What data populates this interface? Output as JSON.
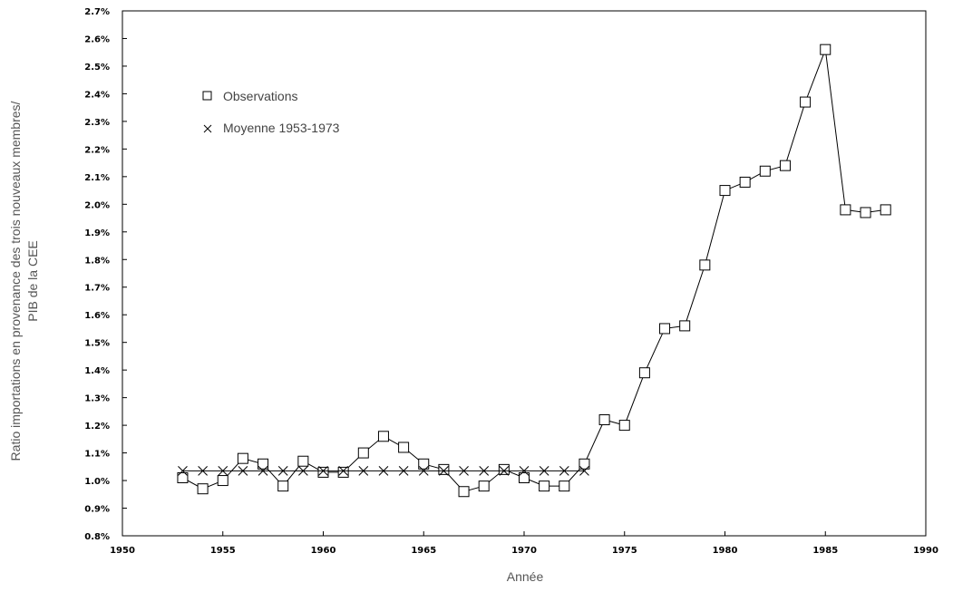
{
  "chart_data": {
    "type": "line",
    "title": "",
    "xlabel": "Année",
    "ylabel_lines": [
      "Ratio importations en provenance des trois nouveaux membres/",
      "PIB de la CEE"
    ],
    "xlim": [
      1950,
      1990
    ],
    "ylim": [
      0.8,
      2.7
    ],
    "x_ticks": [
      "1950",
      "1955",
      "1960",
      "1965",
      "1970",
      "1975",
      "1980",
      "1985",
      "1990"
    ],
    "y_ticks": [
      "0.8%",
      "0.9%",
      "1.0%",
      "1.1%",
      "1.2%",
      "1.3%",
      "1.4%",
      "1.5%",
      "1.6%",
      "1.7%",
      "1.8%",
      "1.9%",
      "2.0%",
      "2.1%",
      "2.2%",
      "2.3%",
      "2.4%",
      "2.5%",
      "2.6%",
      "2.7%"
    ],
    "legend_position": "top-left",
    "grid": false,
    "series": [
      {
        "name": "Observations",
        "marker": "square",
        "x": [
          1953,
          1954,
          1955,
          1956,
          1957,
          1958,
          1959,
          1960,
          1961,
          1962,
          1963,
          1964,
          1965,
          1966,
          1967,
          1968,
          1969,
          1970,
          1971,
          1972,
          1973,
          1974,
          1975,
          1976,
          1977,
          1978,
          1979,
          1980,
          1981,
          1982,
          1983,
          1984,
          1985,
          1986,
          1987,
          1988
        ],
        "y": [
          1.01,
          0.97,
          1.0,
          1.08,
          1.06,
          0.98,
          1.07,
          1.03,
          1.03,
          1.1,
          1.16,
          1.12,
          1.06,
          1.04,
          0.96,
          0.98,
          1.04,
          1.01,
          0.98,
          0.98,
          1.06,
          1.22,
          1.2,
          1.39,
          1.55,
          1.56,
          1.78,
          2.05,
          2.08,
          2.12,
          2.14,
          2.37,
          2.56,
          1.98,
          1.97,
          1.98
        ]
      },
      {
        "name": "Moyenne 1953-1973",
        "marker": "x",
        "x": [
          1953,
          1954,
          1955,
          1956,
          1957,
          1958,
          1959,
          1960,
          1961,
          1962,
          1963,
          1964,
          1965,
          1966,
          1967,
          1968,
          1969,
          1970,
          1971,
          1972,
          1973
        ],
        "y": [
          1.035,
          1.035,
          1.035,
          1.035,
          1.035,
          1.035,
          1.035,
          1.035,
          1.035,
          1.035,
          1.035,
          1.035,
          1.035,
          1.035,
          1.035,
          1.035,
          1.035,
          1.035,
          1.035,
          1.035,
          1.035
        ]
      }
    ]
  }
}
